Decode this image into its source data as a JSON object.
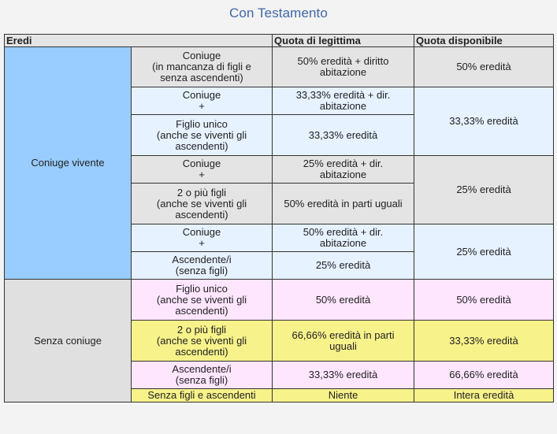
{
  "title": "Con Testamento",
  "headers": {
    "eredi": "Eredi",
    "legittima": "Quota di legittima",
    "disponibile": "Quota disponibile"
  },
  "groups": {
    "coniuge_vivente": "Coniuge vivente",
    "senza_coniuge": "Senza coniuge"
  },
  "rows": {
    "r1": {
      "heir": "Coniuge\n(in mancanza di figli e\nsenza ascendenti)",
      "legittima": "50% eredità + diritto\nabitazione",
      "disponibile": "50% eredità"
    },
    "r2": {
      "heir": "Coniuge\n+",
      "legittima": "33,33% eredità + dir.\nabitazione",
      "disponibile": "33,33% eredità"
    },
    "r3": {
      "heir": "Figlio unico\n(anche se viventi gli\nascendenti)",
      "legittima": "33,33% eredità"
    },
    "r4": {
      "heir": "Coniuge\n+",
      "legittima": "25% eredità + dir.\nabitazione",
      "disponibile": "25% eredità"
    },
    "r5": {
      "heir": "2 o più figli\n(anche se viventi gli\nascendenti)",
      "legittima": "50% eredità in parti uguali"
    },
    "r6": {
      "heir": "Coniuge\n+",
      "legittima": "50% eredità + dir.\nabitazione",
      "disponibile": "25% eredità"
    },
    "r7": {
      "heir": "Ascendente/i\n(senza figli)",
      "legittima": "25% eredità"
    },
    "r8": {
      "heir": "Figlio unico\n(anche se viventi gli\nascendenti)",
      "legittima": "50% eredità",
      "disponibile": "50% eredità"
    },
    "r9": {
      "heir": "2 o più figli\n(anche se viventi gli\nascendenti)",
      "legittima": "66,66% eredità in parti\nuguali",
      "disponibile": "33,33% eredità"
    },
    "r10": {
      "heir": "Ascendente/i\n(senza figli)",
      "legittima": "33,33% eredità",
      "disponibile": "66,66% eredità"
    },
    "r11": {
      "heir": "Senza figli e ascendenti",
      "legittima": "Niente",
      "disponibile": "Intera eredità"
    }
  },
  "colors": {
    "title": "#3f67a7",
    "coniuge_vivente_bg": "#99ccff",
    "light_blue": "#e6f2ff",
    "grey": "#e4e4e4",
    "pink": "#ffe6ff",
    "yellow": "#f7f28a"
  }
}
